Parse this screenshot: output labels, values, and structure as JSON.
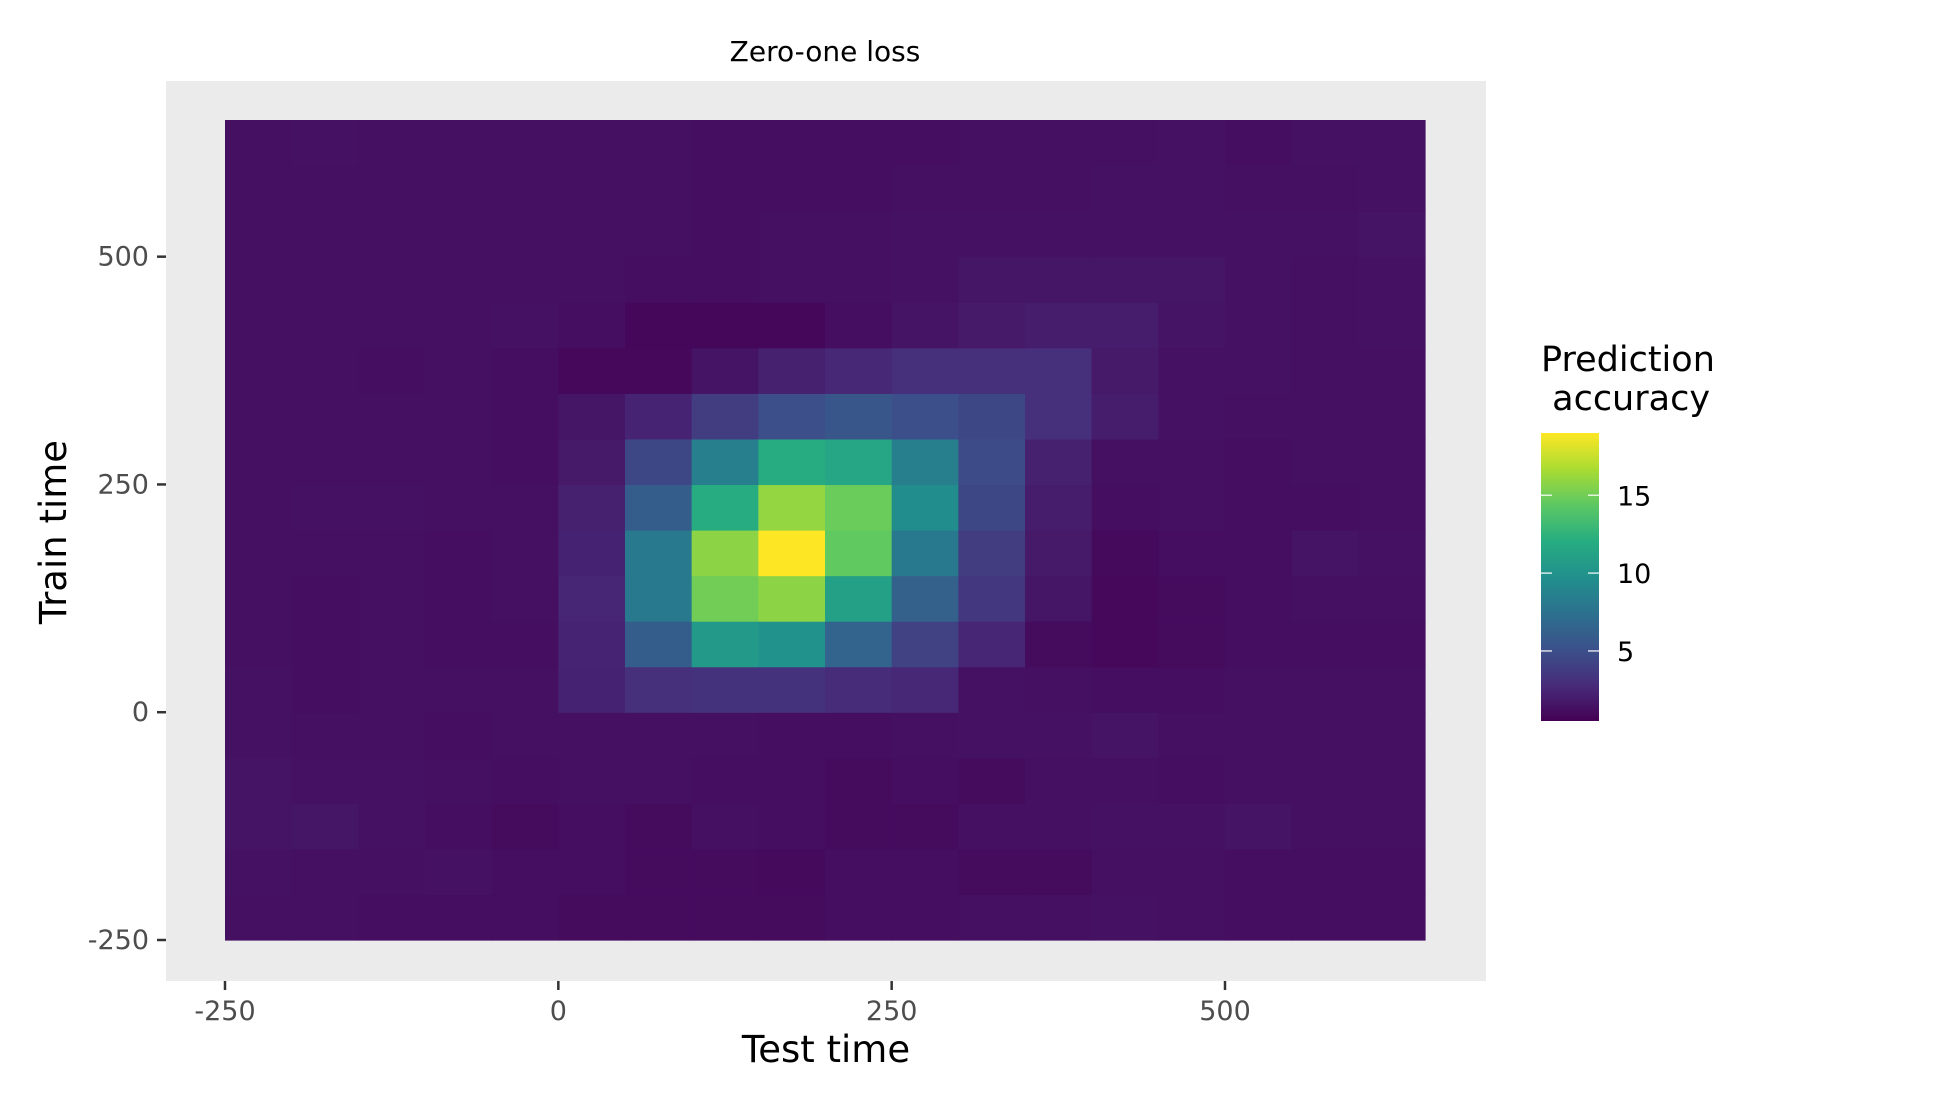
{
  "chart_data": {
    "type": "heatmap",
    "title": "Zero-one loss",
    "xlabel": "Test time",
    "ylabel": "Train time",
    "legend_title_line1": "Prediction",
    "legend_title_line2": " accuracy",
    "x_ticks": [
      -250,
      0,
      250,
      500
    ],
    "y_ticks": [
      -250,
      0,
      250,
      500
    ],
    "x_tick_labels": [
      "-250",
      "0",
      "250",
      "500"
    ],
    "y_tick_labels": [
      "-250",
      "0",
      "250",
      "500"
    ],
    "xlim": [
      -250,
      650
    ],
    "ylim": [
      -250,
      650
    ],
    "x_bin_edges": [
      -250,
      -200,
      -150,
      -100,
      -50,
      0,
      50,
      100,
      150,
      200,
      250,
      300,
      350,
      400,
      450,
      500,
      550,
      600,
      650
    ],
    "y_bin_edges": [
      -250,
      -200,
      -150,
      -100,
      -50,
      0,
      50,
      100,
      150,
      200,
      250,
      300,
      350,
      400,
      450,
      500,
      550,
      600,
      650
    ],
    "legend_breaks": [
      5,
      10,
      15
    ],
    "legend_labels": [
      "5",
      "10",
      "15"
    ],
    "color_range": [
      0.5,
      19
    ],
    "colormap": "viridis",
    "panel_background": "#ebebeb",
    "grid": false,
    "legend_position": "right",
    "z": [
      [
        1.3,
        1.3,
        1.2,
        1.2,
        1.2,
        1.1,
        1.1,
        1.1,
        1.1,
        1.2,
        1.2,
        1.3,
        1.3,
        1.4,
        1.3,
        1.2,
        1.2,
        1.2
      ],
      [
        1.4,
        1.3,
        1.3,
        1.4,
        1.2,
        1.2,
        1.1,
        1.1,
        1.0,
        1.2,
        1.2,
        1.1,
        1.1,
        1.3,
        1.3,
        1.2,
        1.2,
        1.2
      ],
      [
        1.5,
        1.6,
        1.4,
        1.2,
        1.1,
        1.2,
        1.1,
        1.3,
        1.2,
        1.1,
        1.1,
        1.3,
        1.3,
        1.4,
        1.4,
        1.5,
        1.3,
        1.3
      ],
      [
        1.5,
        1.4,
        1.4,
        1.3,
        1.2,
        1.3,
        1.3,
        1.2,
        1.2,
        1.1,
        1.2,
        1.1,
        1.3,
        1.3,
        1.2,
        1.3,
        1.3,
        1.3
      ],
      [
        1.4,
        1.3,
        1.3,
        1.2,
        1.3,
        1.3,
        1.3,
        1.3,
        1.2,
        1.2,
        1.3,
        1.4,
        1.4,
        1.5,
        1.3,
        1.3,
        1.3,
        1.3
      ],
      [
        1.4,
        1.2,
        1.3,
        1.3,
        1.3,
        2.3,
        3.0,
        3.2,
        3.2,
        2.8,
        2.6,
        1.4,
        1.3,
        1.2,
        1.2,
        1.3,
        1.3,
        1.3
      ],
      [
        1.3,
        1.2,
        1.3,
        1.2,
        1.2,
        2.4,
        6.0,
        10.5,
        10.0,
        6.5,
        4.2,
        2.5,
        1.1,
        0.9,
        1.1,
        1.2,
        1.2,
        1.2
      ],
      [
        1.3,
        1.2,
        1.3,
        1.2,
        1.3,
        2.5,
        8.0,
        15.0,
        15.8,
        11.0,
        6.2,
        3.5,
        1.6,
        0.9,
        1.1,
        1.2,
        1.3,
        1.3
      ],
      [
        1.3,
        1.3,
        1.3,
        1.2,
        1.3,
        2.3,
        8.0,
        15.8,
        19.0,
        14.5,
        8.0,
        3.8,
        1.8,
        1.0,
        1.2,
        1.2,
        1.5,
        1.4
      ],
      [
        1.3,
        1.4,
        1.4,
        1.3,
        1.3,
        2.2,
        6.0,
        12.0,
        16.0,
        14.8,
        9.5,
        4.5,
        2.0,
        1.2,
        1.3,
        1.2,
        1.2,
        1.3
      ],
      [
        1.3,
        1.3,
        1.3,
        1.3,
        1.2,
        1.8,
        4.5,
        8.5,
        12.0,
        11.5,
        8.5,
        4.8,
        2.2,
        1.3,
        1.3,
        1.2,
        1.3,
        1.3
      ],
      [
        1.3,
        1.3,
        1.3,
        1.3,
        1.2,
        1.6,
        2.4,
        3.8,
        5.0,
        5.5,
        5.0,
        4.5,
        3.0,
        2.0,
        1.4,
        1.3,
        1.3,
        1.3
      ],
      [
        1.3,
        1.3,
        1.2,
        1.3,
        1.2,
        0.9,
        0.9,
        1.5,
        2.2,
        2.6,
        3.0,
        3.0,
        3.0,
        1.8,
        1.4,
        1.4,
        1.3,
        1.3
      ],
      [
        1.3,
        1.3,
        1.3,
        1.3,
        1.4,
        1.2,
        0.8,
        0.8,
        0.8,
        1.2,
        1.5,
        1.8,
        2.0,
        2.0,
        1.5,
        1.4,
        1.3,
        1.4
      ],
      [
        1.3,
        1.3,
        1.3,
        1.3,
        1.3,
        1.3,
        1.2,
        1.2,
        1.3,
        1.3,
        1.4,
        1.6,
        1.6,
        1.6,
        1.6,
        1.4,
        1.3,
        1.4
      ],
      [
        1.3,
        1.3,
        1.3,
        1.3,
        1.3,
        1.3,
        1.3,
        1.2,
        1.3,
        1.3,
        1.4,
        1.4,
        1.4,
        1.4,
        1.4,
        1.4,
        1.4,
        1.5
      ],
      [
        1.3,
        1.3,
        1.3,
        1.3,
        1.3,
        1.3,
        1.3,
        1.2,
        1.2,
        1.2,
        1.3,
        1.3,
        1.3,
        1.4,
        1.4,
        1.3,
        1.3,
        1.4
      ],
      [
        1.3,
        1.4,
        1.3,
        1.3,
        1.3,
        1.3,
        1.3,
        1.2,
        1.2,
        1.2,
        1.2,
        1.3,
        1.3,
        1.3,
        1.4,
        1.2,
        1.4,
        1.4
      ]
    ]
  }
}
